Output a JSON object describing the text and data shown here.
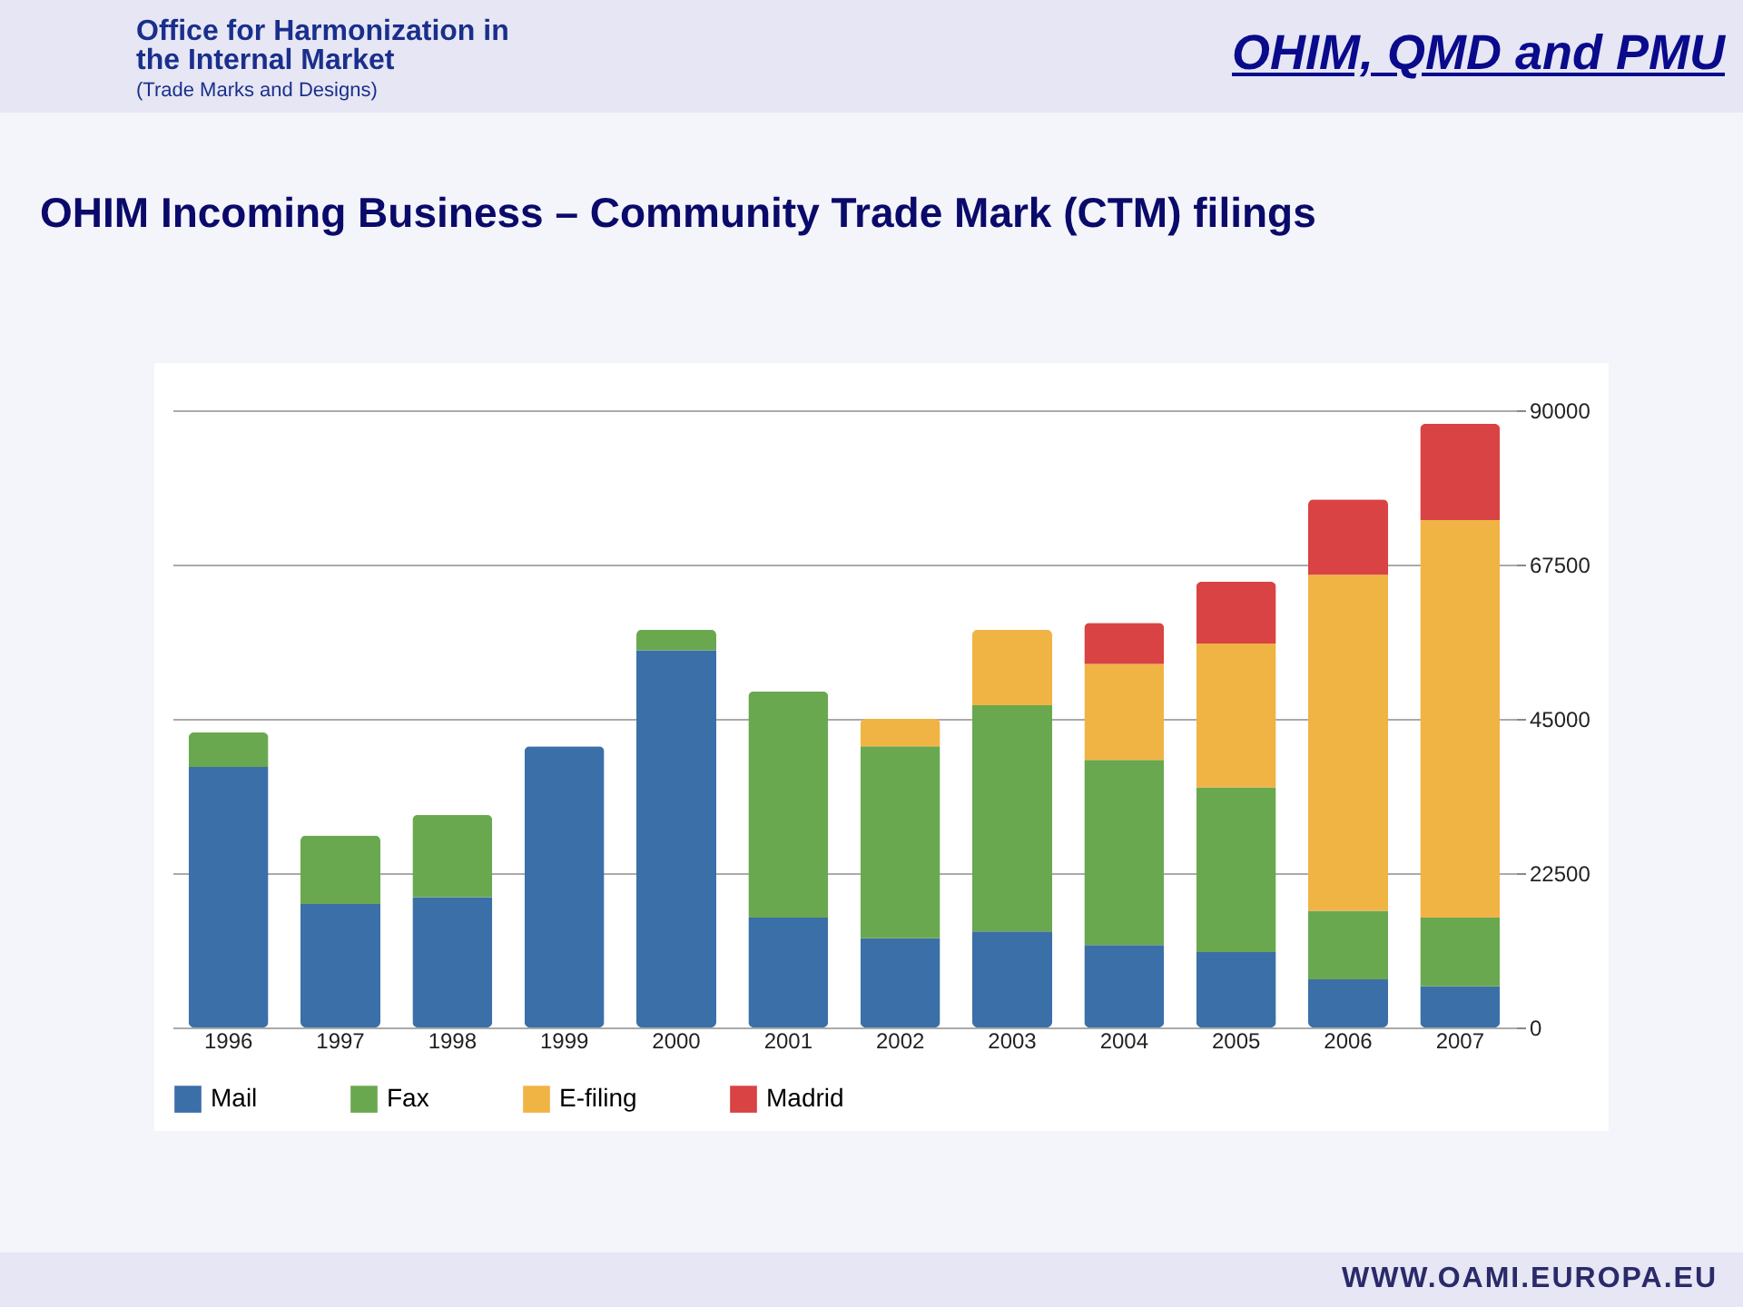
{
  "chart_data": {
    "type": "bar",
    "title": "OHIM Incoming Business – Community Trade Mark (CTM) filings",
    "annotations": [
      "Office for Harmonization in the Internal Market",
      "(Trade Marks and Designs)",
      "OHIM, QMD and PMU",
      "WWW.OAMI.EUROPA.EU"
    ],
    "categories": [
      "1996",
      "1997",
      "1998",
      "1999",
      "2000",
      "2001",
      "2002",
      "2003",
      "2004",
      "2005",
      "2006",
      "2007"
    ],
    "stacked": true,
    "series": [
      {
        "name": "Mail",
        "color": "#3b6fa8",
        "values": [
          38000,
          18000,
          19000,
          41000,
          55000,
          16000,
          13000,
          14000,
          12000,
          11000,
          7000,
          6000
        ]
      },
      {
        "name": "Fax",
        "color": "#6aa84f",
        "values": [
          5000,
          10000,
          12000,
          null,
          3000,
          33000,
          28000,
          33000,
          27000,
          24000,
          10000,
          10000
        ]
      },
      {
        "name": "E-filing",
        "color": "#f0b445",
        "values": [
          null,
          null,
          null,
          null,
          null,
          null,
          4000,
          11000,
          14000,
          21000,
          49000,
          58000
        ]
      },
      {
        "name": "Madrid",
        "color": "#d94343",
        "values": [
          null,
          null,
          null,
          null,
          null,
          null,
          null,
          null,
          6000,
          9000,
          11000,
          14000
        ]
      }
    ],
    "ylim": [
      0,
      90000
    ],
    "yticks": [
      0,
      22500,
      45000,
      67500,
      90000
    ],
    "grid": "y",
    "legend": "bottom"
  }
}
